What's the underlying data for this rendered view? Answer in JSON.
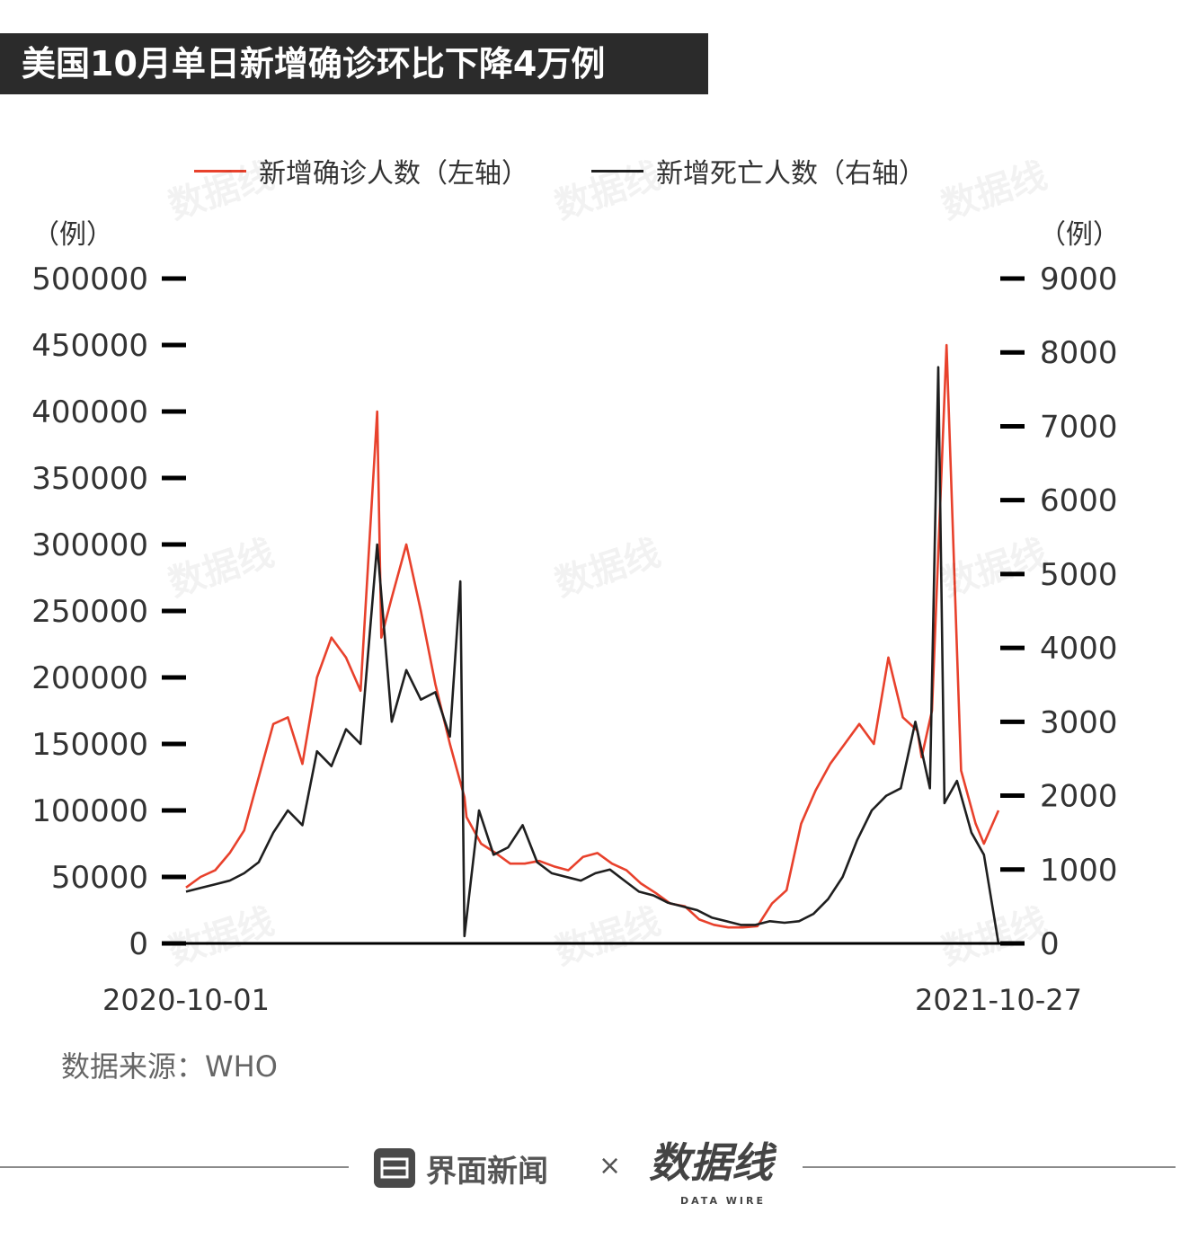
{
  "title": "美国10月单日新增确诊环比下降4万例",
  "legend": {
    "cases_label": "新增确诊人数（左轴）",
    "deaths_label": "新增死亡人数（右轴）"
  },
  "left_unit": "（例）",
  "right_unit": "（例）",
  "source": "数据来源：WHO",
  "footer": {
    "brand": "界面新闻",
    "times": "×",
    "partner": "数据线",
    "partner_sub": "DATA WIRE"
  },
  "watermark_text": "数据线",
  "colors": {
    "cases": "#e8412c",
    "deaths": "#1f1f1f",
    "axis": "#000000"
  },
  "chart_data": {
    "type": "line",
    "x_start": "2020-10-01",
    "x_end": "2021-10-27",
    "x_tick_labels": [
      "2020-10-01",
      "2021-10-27"
    ],
    "left_axis": {
      "ylim": [
        0,
        500000
      ],
      "ticks": [
        0,
        50000,
        100000,
        150000,
        200000,
        250000,
        300000,
        350000,
        400000,
        450000,
        500000
      ]
    },
    "right_axis": {
      "ylim": [
        0,
        9000
      ],
      "ticks": [
        0,
        1000,
        2000,
        3000,
        4000,
        5000,
        6000,
        7000,
        8000,
        9000
      ]
    },
    "series": [
      {
        "name": "新增确诊人数（左轴）",
        "axis": "left",
        "x": [
          "2020-10-01",
          "2020-10-08",
          "2020-10-15",
          "2020-10-22",
          "2020-10-29",
          "2020-11-05",
          "2020-11-12",
          "2020-11-19",
          "2020-11-26",
          "2020-12-03",
          "2020-12-10",
          "2020-12-17",
          "2020-12-24",
          "2021-01-01",
          "2021-01-03",
          "2021-01-08",
          "2021-01-15",
          "2021-01-22",
          "2021-01-29",
          "2021-02-05",
          "2021-02-12",
          "2021-02-13",
          "2021-02-20",
          "2021-02-27",
          "2021-03-06",
          "2021-03-13",
          "2021-03-20",
          "2021-03-27",
          "2021-04-03",
          "2021-04-10",
          "2021-04-17",
          "2021-04-24",
          "2021-05-01",
          "2021-05-08",
          "2021-05-15",
          "2021-05-22",
          "2021-05-29",
          "2021-06-05",
          "2021-06-12",
          "2021-06-19",
          "2021-06-26",
          "2021-07-03",
          "2021-07-10",
          "2021-07-17",
          "2021-07-24",
          "2021-07-31",
          "2021-08-07",
          "2021-08-14",
          "2021-08-21",
          "2021-08-28",
          "2021-09-04",
          "2021-09-11",
          "2021-09-18",
          "2021-09-20",
          "2021-09-25",
          "2021-10-02",
          "2021-10-09",
          "2021-10-16",
          "2021-10-20",
          "2021-10-27"
        ],
        "values": [
          42000,
          50000,
          55000,
          68000,
          85000,
          125000,
          165000,
          170000,
          135000,
          200000,
          230000,
          215000,
          190000,
          400000,
          230000,
          260000,
          300000,
          250000,
          195000,
          150000,
          110000,
          95000,
          75000,
          68000,
          60000,
          60000,
          62000,
          58000,
          55000,
          65000,
          68000,
          60000,
          55000,
          45000,
          38000,
          30000,
          28000,
          18000,
          14000,
          12000,
          12000,
          13000,
          30000,
          40000,
          90000,
          115000,
          135000,
          150000,
          165000,
          150000,
          215000,
          170000,
          160000,
          140000,
          175000,
          450000,
          130000,
          90000,
          75000,
          100000
        ]
      },
      {
        "name": "新增死亡人数（右轴）",
        "axis": "right",
        "x": [
          "2020-10-01",
          "2020-10-08",
          "2020-10-15",
          "2020-10-22",
          "2020-10-29",
          "2020-11-05",
          "2020-11-12",
          "2020-11-19",
          "2020-11-26",
          "2020-12-03",
          "2020-12-10",
          "2020-12-17",
          "2020-12-24",
          "2021-01-01",
          "2021-01-08",
          "2021-01-15",
          "2021-01-22",
          "2021-01-29",
          "2021-02-05",
          "2021-02-10",
          "2021-02-12",
          "2021-02-19",
          "2021-02-26",
          "2021-03-05",
          "2021-03-12",
          "2021-03-19",
          "2021-03-26",
          "2021-04-02",
          "2021-04-09",
          "2021-04-16",
          "2021-04-23",
          "2021-04-30",
          "2021-05-07",
          "2021-05-14",
          "2021-05-21",
          "2021-05-28",
          "2021-06-04",
          "2021-06-11",
          "2021-06-18",
          "2021-06-25",
          "2021-07-02",
          "2021-07-09",
          "2021-07-16",
          "2021-07-23",
          "2021-07-30",
          "2021-08-06",
          "2021-08-13",
          "2021-08-20",
          "2021-08-27",
          "2021-09-03",
          "2021-09-10",
          "2021-09-17",
          "2021-09-24",
          "2021-09-28",
          "2021-10-01",
          "2021-10-07",
          "2021-10-14",
          "2021-10-20",
          "2021-10-27"
        ],
        "values": [
          700,
          750,
          800,
          850,
          950,
          1100,
          1500,
          1800,
          1600,
          2600,
          2400,
          2900,
          2700,
          5400,
          3000,
          3700,
          3300,
          3400,
          2800,
          4900,
          100,
          1800,
          1200,
          1300,
          1600,
          1100,
          950,
          900,
          850,
          950,
          1000,
          850,
          700,
          650,
          550,
          500,
          450,
          350,
          300,
          250,
          250,
          300,
          280,
          300,
          400,
          600,
          900,
          1400,
          1800,
          2000,
          2100,
          3000,
          2100,
          7800,
          1900,
          2200,
          1500,
          1200,
          0
        ]
      }
    ]
  }
}
